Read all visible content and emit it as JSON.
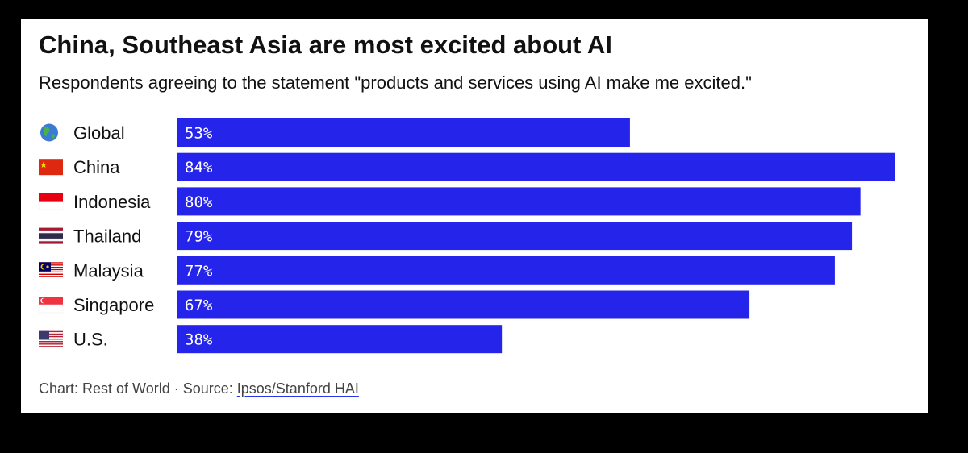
{
  "title": "China, Southeast Asia are most excited about AI",
  "subtitle": "Respondents agreeing to the statement \"products and services using AI make me excited.\"",
  "footer": {
    "chart_credit": "Chart: Rest of World",
    "separator": " · ",
    "source_label": "Source: ",
    "source_link": "Ipsos/Stanford HAI"
  },
  "colors": {
    "bar": "#2424eb",
    "label_text": "#ffffff"
  },
  "chart_data": {
    "type": "bar",
    "orientation": "horizontal",
    "categories": [
      "Global",
      "China",
      "Indonesia",
      "Thailand",
      "Malaysia",
      "Singapore",
      "U.S."
    ],
    "category_icons": [
      "globe-icon",
      "china-flag-icon",
      "indonesia-flag-icon",
      "thailand-flag-icon",
      "malaysia-flag-icon",
      "singapore-flag-icon",
      "us-flag-icon"
    ],
    "values": [
      53,
      84,
      80,
      79,
      77,
      67,
      38
    ],
    "data_labels": [
      "53%",
      "84%",
      "80%",
      "79%",
      "77%",
      "67%",
      "38%"
    ],
    "unit": "%",
    "xlim": [
      0,
      84
    ],
    "grid": false,
    "legend": "none"
  }
}
